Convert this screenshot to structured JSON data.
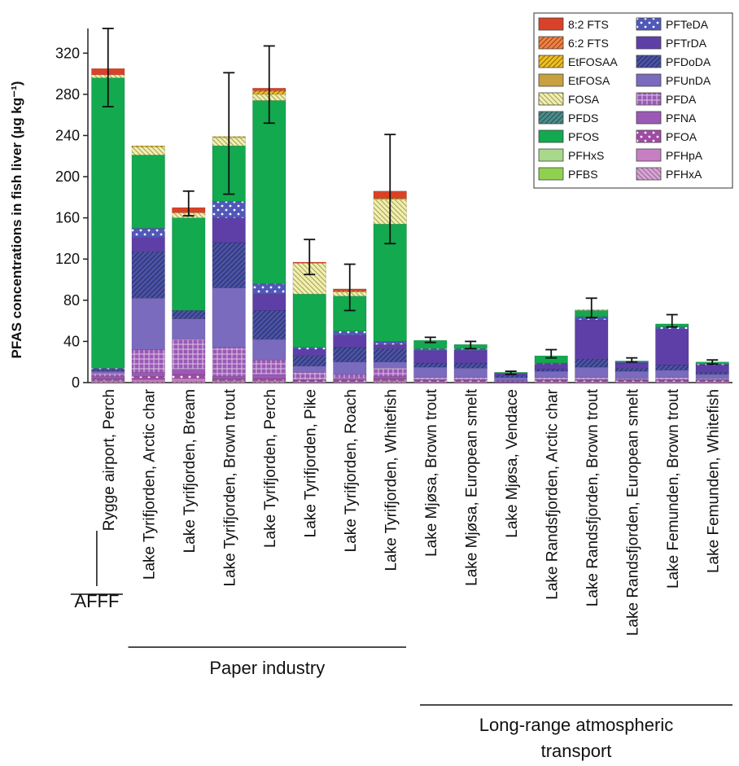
{
  "chart_data": {
    "type": "bar",
    "stacked": true,
    "ylabel": "PFAS concentrations in fish liver (µg kg⁻¹)",
    "ylim": [
      0,
      340
    ],
    "yticks": [
      0,
      40,
      80,
      120,
      160,
      200,
      240,
      280,
      320
    ],
    "legend_position": "top-right",
    "categories": [
      "Rygge airport, Perch",
      "Lake Tyrifjorden, Arctic char",
      "Lake Tyrifjorden, Bream",
      "Lake Tyrifjorden, Brown trout",
      "Lake Tyrifjorden, Perch",
      "Lake Tyrifjorden, Pike",
      "Lake Tyrifjorden, Roach",
      "Lake Tyrifjorden, Whitefish",
      "Lake Mjøsa, Brown trout",
      "Lake Mjøsa, European smelt",
      "Lake Mjøsa, Vendace",
      "Lake Randsfjorden, Arctic char",
      "Lake Randsfjorden, Brown trout",
      "Lake Randsfjorden, European smelt",
      "Lake Femunden, Brown trout",
      "Lake Femunden, Whitefish"
    ],
    "groups": [
      {
        "label": "AFFF",
        "from": 0,
        "to": 0
      },
      {
        "label": "Paper industry",
        "from": 1,
        "to": 7
      },
      {
        "label": "Long-range atmospheric transport",
        "from": 8,
        "to": 15
      }
    ],
    "series": [
      {
        "name": "PFHxA",
        "color": "#d9a3d6",
        "pattern": "diag-rev",
        "values": [
          1,
          1,
          1,
          1,
          1,
          0,
          0,
          1,
          0,
          0,
          0,
          0,
          0,
          0,
          0,
          0
        ]
      },
      {
        "name": "PFHpA",
        "color": "#c77fc4",
        "pattern": "solid",
        "values": [
          1,
          2,
          3,
          1,
          1,
          1,
          1,
          1,
          1,
          1,
          0,
          1,
          1,
          1,
          1,
          1
        ]
      },
      {
        "name": "PFOA",
        "color": "#a04ba5",
        "pattern": "dots",
        "values": [
          2,
          3,
          4,
          2,
          2,
          1,
          1,
          2,
          1,
          1,
          0,
          1,
          1,
          1,
          1,
          1
        ]
      },
      {
        "name": "PFNA",
        "color": "#9b59b6",
        "pattern": "solid",
        "values": [
          2,
          4,
          5,
          2,
          4,
          1,
          2,
          2,
          1,
          1,
          1,
          1,
          1,
          1,
          1,
          1
        ]
      },
      {
        "name": "PFDA",
        "color": "#9b59b6",
        "pattern": "grid",
        "values": [
          3,
          22,
          29,
          28,
          14,
          7,
          4,
          8,
          2,
          2,
          1,
          2,
          2,
          1,
          2,
          1
        ]
      },
      {
        "name": "PFUnDA",
        "color": "#7a6bbf",
        "pattern": "solid",
        "values": [
          2,
          50,
          20,
          58,
          20,
          6,
          12,
          6,
          10,
          9,
          3,
          6,
          10,
          7,
          7,
          4
        ]
      },
      {
        "name": "PFDoDA",
        "color": "#4a52a8",
        "pattern": "diag",
        "values": [
          1,
          45,
          8,
          44,
          28,
          10,
          14,
          13,
          4,
          5,
          2,
          2,
          8,
          3,
          5,
          2
        ]
      },
      {
        "name": "PFTrDA",
        "color": "#5e3fa8",
        "pattern": "solid",
        "values": [
          1,
          14,
          0,
          24,
          16,
          6,
          12,
          4,
          12,
          12,
          2,
          5,
          38,
          5,
          35,
          7
        ]
      },
      {
        "name": "PFTeDA",
        "color": "#5058b8",
        "pattern": "dots",
        "values": [
          1,
          9,
          0,
          16,
          10,
          2,
          4,
          3,
          2,
          2,
          0,
          1,
          3,
          1,
          2,
          1
        ]
      },
      {
        "name": "PFBS",
        "color": "#8fd14f",
        "pattern": "solid",
        "values": [
          0,
          0,
          0,
          0,
          0,
          0,
          0,
          0,
          0,
          0,
          0,
          0,
          0,
          0,
          0,
          0
        ]
      },
      {
        "name": "PFHxS",
        "color": "#a8d88a",
        "pattern": "solid",
        "values": [
          0,
          0,
          0,
          0,
          0,
          0,
          0,
          0,
          0,
          0,
          0,
          0,
          0,
          0,
          0,
          0
        ]
      },
      {
        "name": "PFOS",
        "color": "#12a94f",
        "pattern": "solid",
        "values": [
          282,
          71,
          90,
          54,
          178,
          52,
          34,
          114,
          8,
          4,
          1,
          7,
          6,
          1,
          3,
          2
        ]
      },
      {
        "name": "PFDS",
        "color": "#4a8d8d",
        "pattern": "diag",
        "values": [
          0,
          0,
          0,
          0,
          0,
          0,
          0,
          0,
          0,
          0,
          0,
          0,
          0,
          0,
          0,
          0
        ]
      },
      {
        "name": "FOSA",
        "color": "#f2f0a8",
        "pattern": "diag-rev",
        "values": [
          3,
          8,
          5,
          8,
          6,
          30,
          4,
          24,
          0,
          0,
          0,
          0,
          1,
          0,
          0,
          0
        ]
      },
      {
        "name": "EtFOSA",
        "color": "#c8a040",
        "pattern": "solid",
        "values": [
          0,
          0,
          0,
          0,
          0,
          0,
          0,
          0,
          0,
          0,
          0,
          0,
          0,
          0,
          0,
          0
        ]
      },
      {
        "name": "EtFOSAA",
        "color": "#f0c020",
        "pattern": "diag",
        "values": [
          0,
          1,
          0,
          1,
          3,
          0,
          1,
          1,
          0,
          0,
          0,
          0,
          0,
          0,
          0,
          0
        ]
      },
      {
        "name": "6:2 FTS",
        "color": "#f58040",
        "pattern": "diag",
        "values": [
          0,
          0,
          0,
          0,
          1,
          0,
          0,
          0,
          0,
          0,
          0,
          0,
          0,
          0,
          0,
          0
        ]
      },
      {
        "name": "8:2 FTS",
        "color": "#d94228",
        "pattern": "solid",
        "values": [
          6,
          0,
          5,
          0,
          2,
          1,
          2,
          7,
          0,
          0,
          0,
          0,
          0,
          0,
          0,
          0
        ]
      }
    ],
    "error_bars": [
      {
        "low": 268,
        "high": 344
      },
      null,
      {
        "low": 162,
        "high": 186
      },
      {
        "low": 183,
        "high": 301
      },
      {
        "low": 252,
        "high": 327
      },
      {
        "low": 105,
        "high": 139
      },
      {
        "low": 70,
        "high": 115
      },
      {
        "low": 135,
        "high": 241
      },
      {
        "low": 39,
        "high": 44
      },
      {
        "low": 33,
        "high": 40
      },
      {
        "low": 8,
        "high": 11
      },
      {
        "low": 24,
        "high": 32
      },
      {
        "low": 63,
        "high": 82
      },
      {
        "low": 20,
        "high": 24
      },
      {
        "low": 54,
        "high": 66
      },
      {
        "low": 18,
        "high": 22
      }
    ],
    "legend": {
      "left_column": [
        "8:2 FTS",
        "6:2 FTS",
        "EtFOSAA",
        "EtFOSA",
        "FOSA",
        "PFDS",
        "PFOS",
        "PFHxS",
        "PFBS"
      ],
      "right_column": [
        "PFTeDA",
        "PFTrDA",
        "PFDoDA",
        "PFUnDA",
        "PFDA",
        "PFNA",
        "PFOA",
        "PFHpA",
        "PFHxA"
      ]
    }
  }
}
